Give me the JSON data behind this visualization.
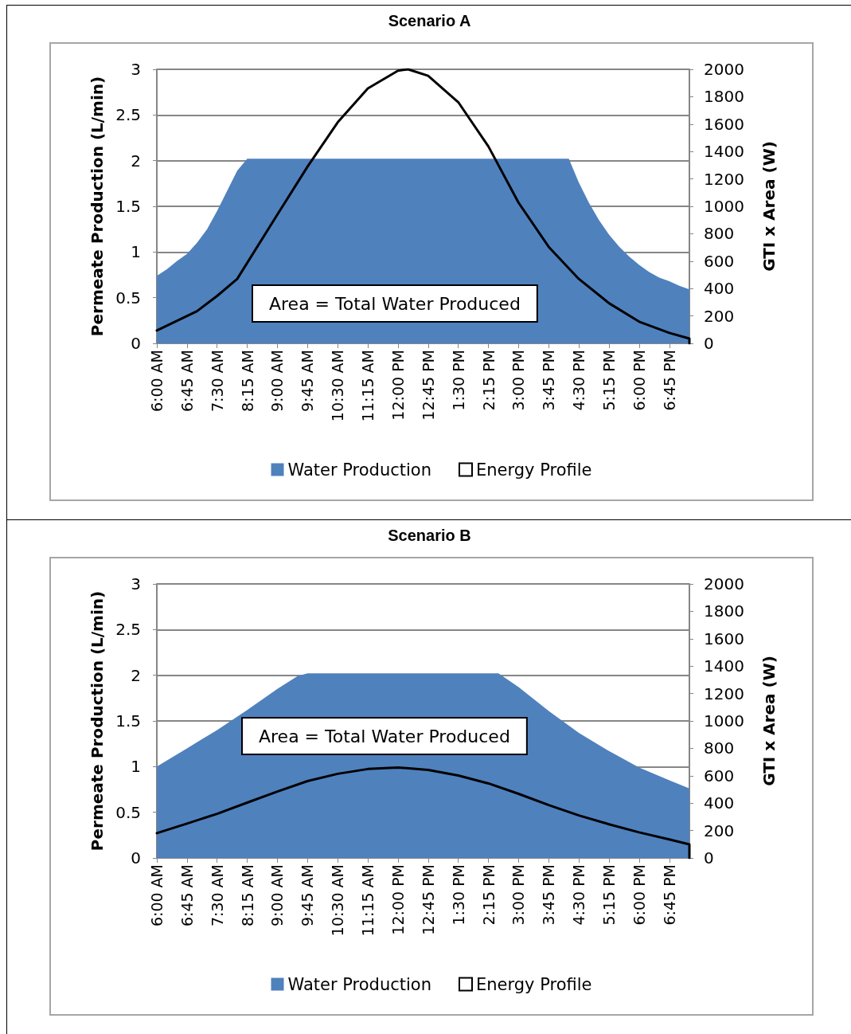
{
  "chart_data": [
    {
      "type": "area",
      "title": "Scenario A",
      "ylabel": "Permeate Production (L/min)",
      "y2label": "GTI x Area (W)",
      "annotations": [
        "Area = Total Water Produced"
      ],
      "xlim": [
        6,
        19.25
      ],
      "xticks": [
        {
          "value": 6,
          "label": "6:00 AM"
        },
        {
          "value": 6.75,
          "label": "6:45 AM"
        },
        {
          "value": 7.5,
          "label": "7:30 AM"
        },
        {
          "value": 8.25,
          "label": "8:15 AM"
        },
        {
          "value": 9,
          "label": "9:00 AM"
        },
        {
          "value": 9.75,
          "label": "9:45 AM"
        },
        {
          "value": 10.5,
          "label": "10:30 AM"
        },
        {
          "value": 11.25,
          "label": "11:15 AM"
        },
        {
          "value": 12,
          "label": "12:00 PM"
        },
        {
          "value": 12.75,
          "label": "12:45 PM"
        },
        {
          "value": 13.5,
          "label": "1:30 PM"
        },
        {
          "value": 14.25,
          "label": "2:15 PM"
        },
        {
          "value": 15,
          "label": "3:00 PM"
        },
        {
          "value": 15.75,
          "label": "3:45 PM"
        },
        {
          "value": 16.5,
          "label": "4:30 PM"
        },
        {
          "value": 17.25,
          "label": "5:15 PM"
        },
        {
          "value": 18,
          "label": "6:00 PM"
        },
        {
          "value": 18.75,
          "label": "6:45 PM"
        }
      ],
      "ylim": [
        0,
        3
      ],
      "yticks": [
        0,
        0.5,
        1,
        1.5,
        2,
        2.5,
        3
      ],
      "y2lim": [
        0,
        2000
      ],
      "y2ticks": [
        0,
        200,
        400,
        600,
        800,
        1000,
        1200,
        1400,
        1600,
        1800,
        2000
      ],
      "grid": "y",
      "legend": "bottom",
      "series": [
        {
          "name": "Water Production",
          "color": "#4f81bd",
          "x": [
            6,
            6.25,
            6.5,
            6.75,
            7,
            7.25,
            7.5,
            7.75,
            8,
            8.25,
            16.25,
            16.5,
            16.75,
            17,
            17.25,
            17.5,
            17.75,
            18,
            18.25,
            18.5,
            18.75,
            19,
            19.25
          ],
          "values": [
            0.74,
            0.81,
            0.9,
            0.98,
            1.1,
            1.25,
            1.45,
            1.67,
            1.89,
            2.02,
            2.02,
            1.76,
            1.54,
            1.35,
            1.19,
            1.06,
            0.95,
            0.86,
            0.78,
            0.72,
            0.68,
            0.63,
            0.59
          ]
        },
        {
          "name": "Energy Profile",
          "type": "line",
          "axis": "y2",
          "color": "#000000",
          "x": [
            6,
            7,
            7.5,
            8,
            9,
            9.75,
            10.5,
            11.25,
            12,
            12.25,
            12.75,
            13.5,
            14.25,
            15,
            15.75,
            16.5,
            17.25,
            18,
            18.75,
            19.25,
            19.25
          ],
          "values": [
            94,
            235,
            346,
            470,
            940,
            1290,
            1613,
            1860,
            1990,
            2000,
            1953,
            1760,
            1437,
            1026,
            704,
            470,
            293,
            158,
            76,
            35,
            0
          ]
        }
      ]
    },
    {
      "type": "area",
      "title": "Scenario B",
      "ylabel": "Permeate Production (L/min)",
      "y2label": "GTI x Area (W)",
      "annotations": [
        "Area = Total Water Produced"
      ],
      "xlim": [
        6,
        19.25
      ],
      "xticks": [
        {
          "value": 6,
          "label": "6:00 AM"
        },
        {
          "value": 6.75,
          "label": "6:45 AM"
        },
        {
          "value": 7.5,
          "label": "7:30 AM"
        },
        {
          "value": 8.25,
          "label": "8:15 AM"
        },
        {
          "value": 9,
          "label": "9:00 AM"
        },
        {
          "value": 9.75,
          "label": "9:45 AM"
        },
        {
          "value": 10.5,
          "label": "10:30 AM"
        },
        {
          "value": 11.25,
          "label": "11:15 AM"
        },
        {
          "value": 12,
          "label": "12:00 PM"
        },
        {
          "value": 12.75,
          "label": "12:45 PM"
        },
        {
          "value": 13.5,
          "label": "1:30 PM"
        },
        {
          "value": 14.25,
          "label": "2:15 PM"
        },
        {
          "value": 15,
          "label": "3:00 PM"
        },
        {
          "value": 15.75,
          "label": "3:45 PM"
        },
        {
          "value": 16.5,
          "label": "4:30 PM"
        },
        {
          "value": 17.25,
          "label": "5:15 PM"
        },
        {
          "value": 18,
          "label": "6:00 PM"
        },
        {
          "value": 18.75,
          "label": "6:45 PM"
        }
      ],
      "ylim": [
        0,
        3
      ],
      "yticks": [
        0,
        0.5,
        1,
        1.5,
        2,
        2.5,
        3
      ],
      "y2lim": [
        0,
        2000
      ],
      "y2ticks": [
        0,
        200,
        400,
        600,
        800,
        1000,
        1200,
        1400,
        1600,
        1800,
        2000
      ],
      "grid": "y",
      "legend": "bottom",
      "series": [
        {
          "name": "Water Production",
          "color": "#4f81bd",
          "x": [
            6,
            6.75,
            7.5,
            8.25,
            9,
            9.5,
            9.75,
            14.5,
            15,
            15.75,
            16.5,
            17.25,
            18,
            18.75,
            19.25
          ],
          "values": [
            1.0,
            1.2,
            1.4,
            1.62,
            1.85,
            1.99,
            2.02,
            2.02,
            1.87,
            1.61,
            1.37,
            1.17,
            0.99,
            0.85,
            0.76
          ]
        },
        {
          "name": "Energy Profile",
          "type": "line",
          "axis": "y2",
          "color": "#000000",
          "x": [
            6,
            6.75,
            7.5,
            8.25,
            9,
            9.75,
            10.5,
            11.25,
            12,
            12.75,
            13.5,
            14.25,
            15,
            15.75,
            16.5,
            17.25,
            18,
            18.75,
            19.25,
            19.25
          ],
          "values": [
            181,
            251,
            322,
            404,
            485,
            561,
            614,
            649,
            660,
            643,
            602,
            544,
            468,
            386,
            310,
            246,
            187,
            135,
            99,
            0
          ]
        }
      ]
    }
  ]
}
